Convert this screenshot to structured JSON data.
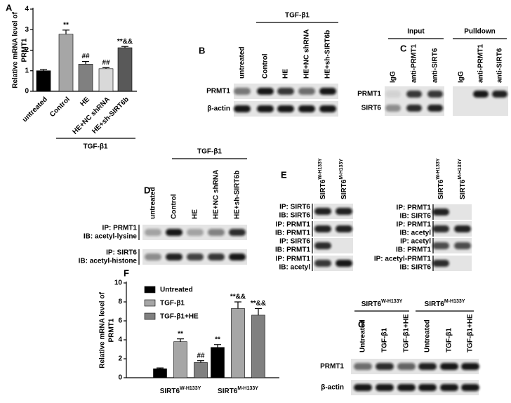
{
  "chart_data": [
    {
      "type": "bar",
      "panel_label": "A",
      "ylabel": [
        "Relative mRNA level of",
        "PRMT1"
      ],
      "categories": [
        "untreated",
        "Control",
        "HE",
        "HE+NC shRNA",
        "HE+sh-SIRT6b"
      ],
      "values": [
        1.0,
        2.78,
        1.32,
        1.1,
        2.12
      ],
      "errors": [
        0.06,
        0.2,
        0.13,
        0.05,
        0.06
      ],
      "colors": [
        "#000000",
        "#a6a6a6",
        "#808080",
        "#d9d9d9",
        "#595959"
      ],
      "annotations": [
        null,
        "**",
        "##",
        "##",
        "**&&"
      ],
      "group_label": "TGF-β1",
      "ylim": [
        0,
        4
      ],
      "yticks": [
        0,
        1,
        2,
        3,
        4
      ]
    },
    {
      "type": "bar",
      "panel_label": "F",
      "ylabel": [
        "Relative mRNA level of",
        "PRMT1"
      ],
      "categories": [
        "SIRT6",
        "SIRT6"
      ],
      "category_superscripts": [
        "W-H133Y",
        "M-H133Y"
      ],
      "series": [
        {
          "name": "Untreated",
          "color": "#000000",
          "values": [
            0.95,
            3.2
          ],
          "errors": [
            0.08,
            0.3
          ],
          "annotations": [
            null,
            "**"
          ]
        },
        {
          "name": "TGF-β1",
          "color": "#a6a6a6",
          "values": [
            3.8,
            7.3
          ],
          "errors": [
            0.3,
            0.7
          ],
          "annotations": [
            "**",
            "**&&"
          ]
        },
        {
          "name": "TGF-β1+HE",
          "color": "#808080",
          "values": [
            1.6,
            6.6
          ],
          "errors": [
            0.2,
            0.7
          ],
          "annotations": [
            "##",
            "**&&"
          ]
        }
      ],
      "ylim": [
        0,
        10
      ],
      "yticks": [
        0,
        2,
        4,
        6,
        8,
        10
      ]
    }
  ],
  "blots": {
    "panel_b": {
      "label": "B",
      "groups": [
        "TGF-β1"
      ],
      "lanes": [
        "untreated",
        "Control",
        "HE",
        "HE+NC shRNA",
        "HE+sh-SIRT6b"
      ],
      "rows": [
        [
          "PRMT1"
        ],
        [
          "β-actin"
        ]
      ]
    },
    "panel_c": {
      "label": "C",
      "groups": [
        "Input",
        "Pulldown"
      ],
      "lanes": [
        "IgG",
        "anti-PRMT1",
        "anti-SIRT6",
        "IgG",
        "anti-PRMT1",
        "anti-SIRT6"
      ],
      "rows": [
        [
          "PRMT1"
        ],
        [
          "SIRT6"
        ]
      ]
    },
    "panel_d": {
      "label": "D",
      "groups": [
        "TGF-β1"
      ],
      "lanes": [
        "untreated",
        "Control",
        "HE",
        "HE+NC shRNA",
        "HE+sh-SIRT6b"
      ],
      "rows": [
        [
          "IP: PRMT1",
          "IB: acetyl-lysine"
        ],
        [
          "IP: SIRT6",
          "IB: acetyl-histone"
        ]
      ]
    },
    "panel_e_left": {
      "label": "E",
      "lanes": [
        "SIRT6",
        "SIRT6"
      ],
      "lane_superscripts": [
        "W-H133Y",
        "M-H133Y"
      ],
      "rows": [
        [
          "IP: SIRT6",
          "IB: SIRT6"
        ],
        [
          "IP: PRMT1",
          "IB: PRMT1"
        ],
        [
          "IP: SIRT6",
          "IB: PRMT1"
        ],
        [
          "IP: PRMT1",
          "IB: acetyl"
        ]
      ]
    },
    "panel_e_right": {
      "lanes": [
        "SIRT6",
        "SIRT6"
      ],
      "lane_superscripts": [
        "W-H133Y",
        "M-H133Y"
      ],
      "rows": [
        [
          "IP: PRMT1",
          "IB: SIRT6"
        ],
        [
          "IP: PRMT1",
          "IB: acetyl"
        ],
        [
          "IP: acetyl",
          "IB: PRMT1"
        ],
        [
          "IP: acetyl-PRMT1",
          "IB: SIRT6"
        ]
      ]
    },
    "panel_g": {
      "label": "G",
      "groups": [
        "SIRT6",
        "SIRT6"
      ],
      "group_superscripts": [
        "W-H133Y",
        "M-H133Y"
      ],
      "lanes": [
        "Untreated",
        "TGF-β1",
        "TGF-β1+HE",
        "Untreated",
        "TGF-β1",
        "TGF-β1+HE"
      ],
      "rows": [
        [
          "PRMT1"
        ],
        [
          "β-actin"
        ]
      ]
    }
  }
}
